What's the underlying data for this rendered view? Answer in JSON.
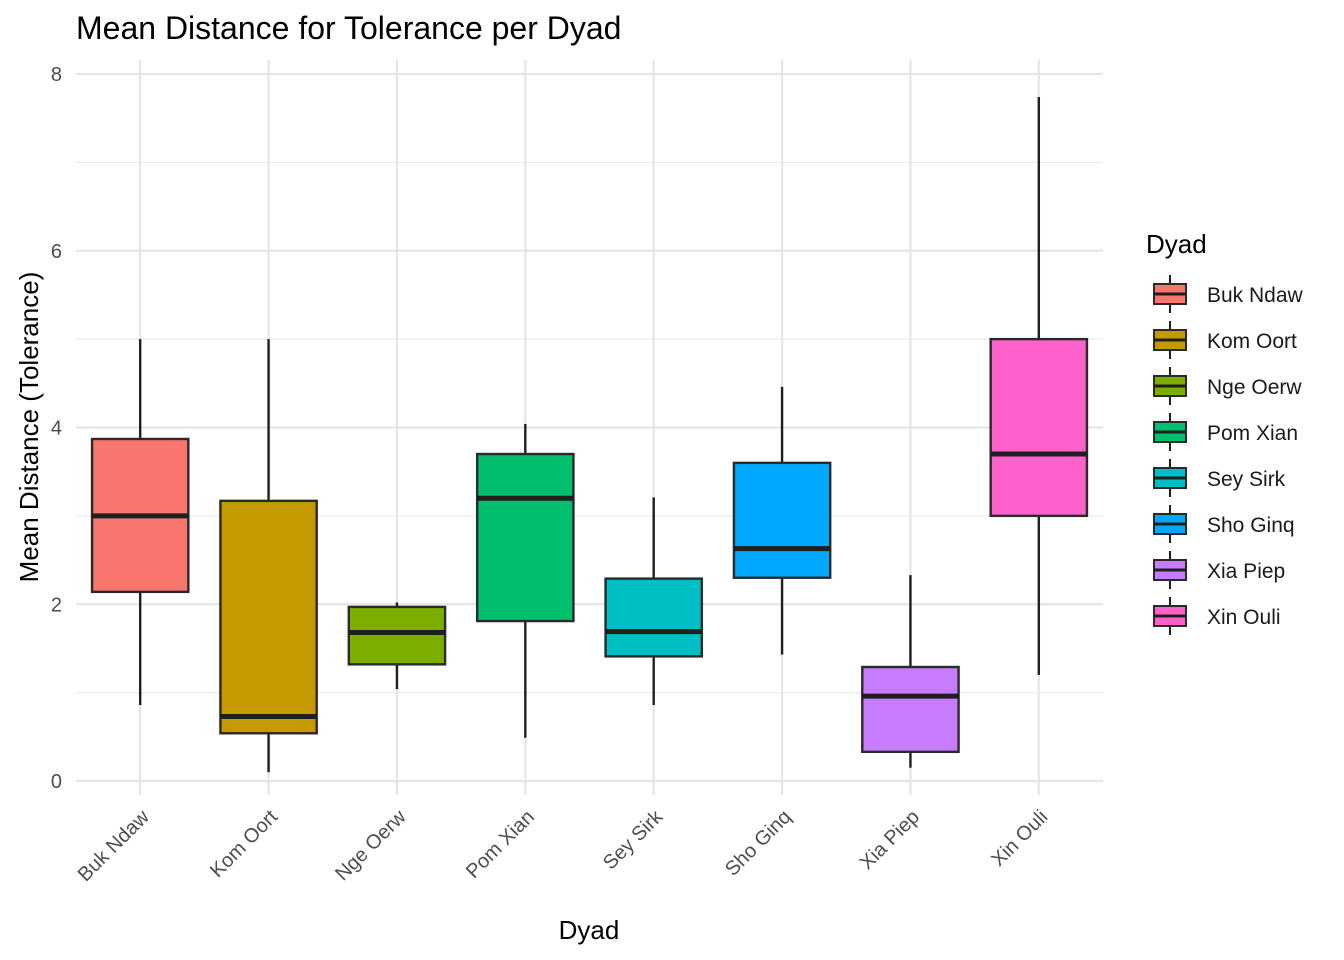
{
  "chart_data": {
    "type": "boxplot",
    "title": "Mean Distance for Tolerance per Dyad",
    "xlabel": "Dyad",
    "ylabel": "Mean Distance (Tolerance)",
    "ylim": [
      -0.2,
      8.1
    ],
    "yticks": [
      0,
      2,
      4,
      6,
      8
    ],
    "grid": true,
    "legend_title": "Dyad",
    "legend_position": "right",
    "series": [
      {
        "name": "Buk Ndaw",
        "color": "#F8766D",
        "min": 0.86,
        "q1": 2.14,
        "median": 3.0,
        "q3": 3.87,
        "max": 5.0
      },
      {
        "name": "Kom Oort",
        "color": "#C49A00",
        "min": 0.1,
        "q1": 0.54,
        "median": 0.73,
        "q3": 3.17,
        "max": 5.0
      },
      {
        "name": "Nge Oerw",
        "color": "#7CAE00",
        "min": 1.04,
        "q1": 1.32,
        "median": 1.68,
        "q3": 1.97,
        "max": 2.02
      },
      {
        "name": "Pom Xian",
        "color": "#00C06E",
        "min": 0.49,
        "q1": 1.81,
        "median": 3.2,
        "q3": 3.7,
        "max": 4.04
      },
      {
        "name": "Sey Sirk",
        "color": "#00BFC4",
        "min": 0.86,
        "q1": 1.41,
        "median": 1.69,
        "q3": 2.29,
        "max": 3.21
      },
      {
        "name": "Sho Ginq",
        "color": "#00A9FF",
        "min": 1.43,
        "q1": 2.3,
        "median": 2.63,
        "q3": 3.6,
        "max": 4.46
      },
      {
        "name": "Xia Piep",
        "color": "#C77CFF",
        "min": 0.15,
        "q1": 0.33,
        "median": 0.96,
        "q3": 1.29,
        "max": 2.33
      },
      {
        "name": "Xin Ouli",
        "color": "#FF61CC",
        "min": 1.2,
        "q1": 3.0,
        "median": 3.7,
        "q3": 5.0,
        "max": 7.74
      }
    ]
  }
}
